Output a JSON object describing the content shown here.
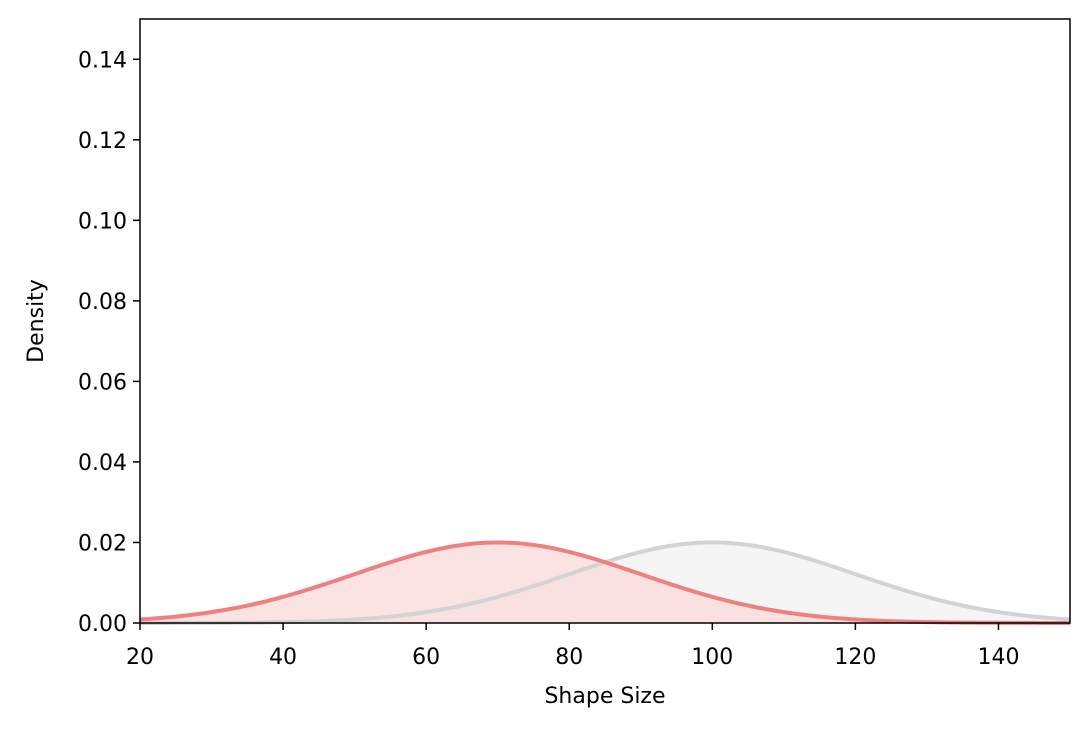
{
  "chart_data": {
    "type": "area",
    "title": "",
    "xlabel": "Shape Size",
    "ylabel": "Density",
    "xlim": [
      20,
      150
    ],
    "ylim": [
      0,
      0.15
    ],
    "xticks": [
      20,
      40,
      60,
      80,
      100,
      120,
      140
    ],
    "yticks": [
      0.0,
      0.02,
      0.04,
      0.06,
      0.08,
      0.1,
      0.12,
      0.14
    ],
    "grid": false,
    "legend": "none",
    "series": [
      {
        "distribution": "normal",
        "mean": 100,
        "std": 20,
        "peak": 0.02,
        "line_color": "#d3d3d3",
        "fill_color": "#f2f2f2"
      },
      {
        "distribution": "normal",
        "mean": 70,
        "std": 20,
        "peak": 0.02,
        "line_color": "#f08080",
        "fill_color": "#f9d9d9"
      }
    ]
  }
}
